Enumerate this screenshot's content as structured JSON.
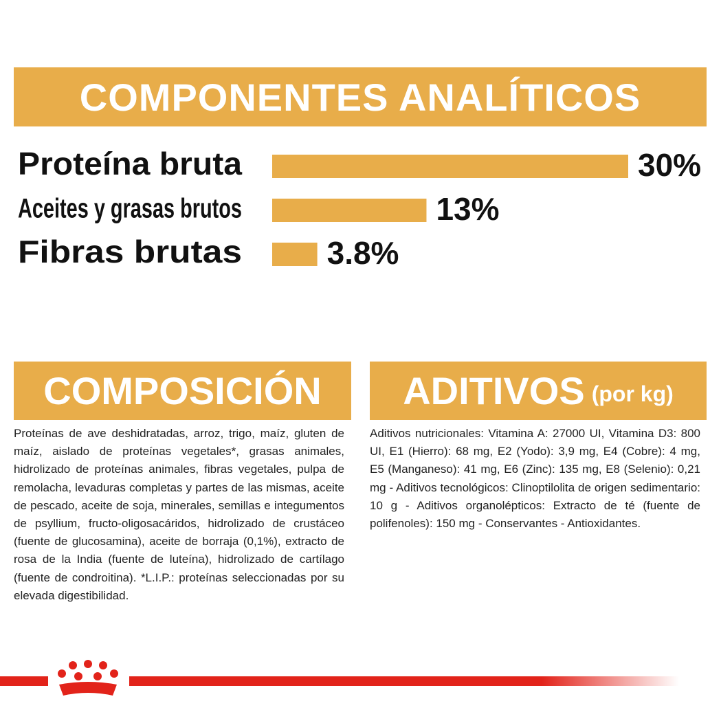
{
  "chart_data": {
    "type": "bar",
    "title": "COMPONENTES ANALÍTICOS",
    "categories": [
      "Proteína bruta",
      "Aceites y grasas brutos",
      "Fibras brutas"
    ],
    "values": [
      30,
      13,
      3.8
    ],
    "value_labels": [
      "30%",
      "13%",
      "3.8%"
    ],
    "color": "#e8ad4a"
  },
  "composicion": {
    "title": "COMPOSICIÓN",
    "text": "Proteínas de ave deshidratadas, arroz, trigo, maíz, gluten de maíz, aislado de proteínas vegetales*, grasas animales, hidrolizado de proteínas animales, fibras vegetales, pulpa de remolacha, levaduras completas y partes de las mismas, aceite de pescado, aceite de soja, minerales, semillas e integumentos de psyllium, fructo-oligosacáridos, hidrolizado de crustáceo (fuente de glucosamina), aceite de borraja (0,1%), extracto de rosa de la India (fuente de luteína), hidrolizado de cartílago (fuente de condroitina). *L.I.P.: proteínas seleccionadas por su elevada digestibilidad."
  },
  "aditivos": {
    "title": "ADITIVOS",
    "subtitle": "(por kg)",
    "text": "Aditivos nutricionales: Vitamina A: 27000 UI, Vitamina D3: 800 UI, E1 (Hierro): 68 mg, E2 (Yodo): 3,9 mg, E4 (Cobre): 4 mg, E5 (Manganeso): 41 mg, E6 (Zinc): 135 mg, E8 (Selenio): 0,21 mg - Aditivos tecnológicos: Clinoptilolita de origen sedimentario: 10 g - Aditivos organolépticos: Extracto de té (fuente de polifenoles): 150 mg - Conservantes - Antioxidantes."
  }
}
